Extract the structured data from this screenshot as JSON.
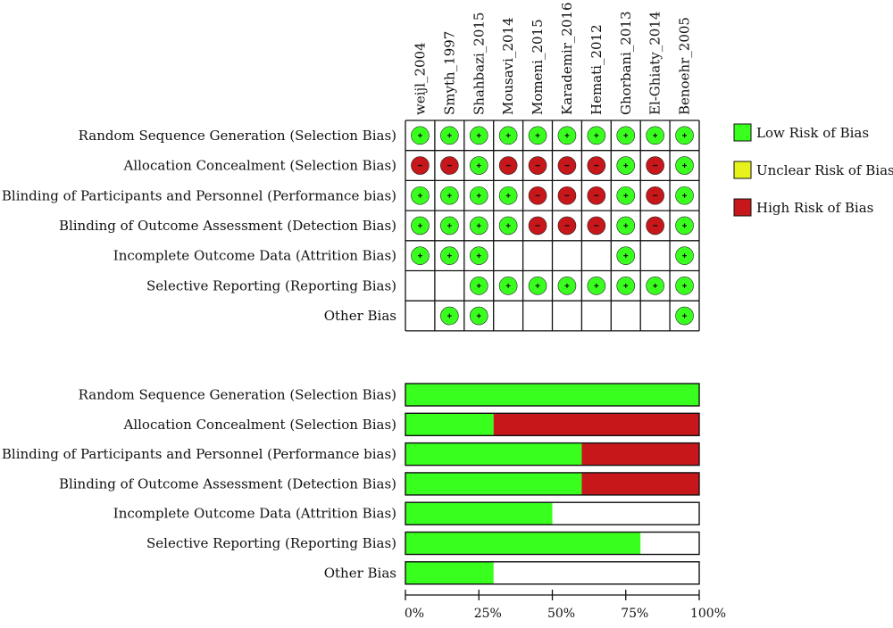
{
  "colors": {
    "low": "#39ff1f",
    "unclear": "#e7f21d",
    "high": "#c8171a",
    "none": "#ffffff",
    "border": "#111111"
  },
  "legend": {
    "items": [
      {
        "label": "Low Risk of Bias",
        "color": "#39ff1f"
      },
      {
        "label": "Unclear Risk of Bias",
        "color": "#e7f21d"
      },
      {
        "label": "High Risk of Bias",
        "color": "#c8171a"
      }
    ]
  },
  "chart_data": [
    {
      "type": "table",
      "studies": [
        "weijl_2004",
        "Smyth_1997",
        "Shahbazi_2015",
        "Mousavi_2014",
        "Momeni_2015",
        "Karademir_2016",
        "Hemati_2012",
        "Ghorbani_2013",
        "El-Ghiaty_2014",
        "Benoehr_2005"
      ],
      "domains": [
        "Random Sequence Generation (Selection Bias)",
        "Allocation Concealment (Selection Bias)",
        "Blinding of Participants and Personnel (Performance bias)",
        "Blinding of Outcome Assessment (Detection Bias)",
        "Incomplete Outcome Data (Attrition Bias)",
        "Selective Reporting (Reporting Bias)",
        "Other Bias"
      ],
      "judgements": [
        [
          "low",
          "low",
          "low",
          "low",
          "low",
          "low",
          "low",
          "low",
          "low",
          "low"
        ],
        [
          "high",
          "high",
          "low",
          "high",
          "high",
          "high",
          "high",
          "low",
          "high",
          "low"
        ],
        [
          "low",
          "low",
          "low",
          "low",
          "high",
          "high",
          "high",
          "low",
          "high",
          "low"
        ],
        [
          "low",
          "low",
          "low",
          "low",
          "high",
          "high",
          "high",
          "low",
          "high",
          "low"
        ],
        [
          "low",
          "low",
          "low",
          "",
          "",
          "",
          "",
          "low",
          "",
          "low"
        ],
        [
          "",
          "",
          "low",
          "low",
          "low",
          "low",
          "low",
          "low",
          "low",
          "low"
        ],
        [
          "",
          "low",
          "low",
          "",
          "",
          "",
          "",
          "",
          "",
          "low"
        ]
      ]
    },
    {
      "type": "bar",
      "categories": [
        "Random Sequence Generation (Selection Bias)",
        "Allocation Concealment (Selection Bias)",
        "Blinding of Participants and Personnel (Performance bias)",
        "Blinding of Outcome Assessment (Detection Bias)",
        "Incomplete Outcome Data (Attrition Bias)",
        "Selective Reporting (Reporting Bias)",
        "Other Bias"
      ],
      "series": [
        {
          "name": "Low Risk of Bias",
          "color": "#39ff1f",
          "values": [
            100,
            30,
            60,
            60,
            50,
            80,
            30
          ]
        },
        {
          "name": "High Risk of Bias",
          "color": "#c8171a",
          "values": [
            0,
            70,
            40,
            40,
            0,
            0,
            0
          ]
        }
      ],
      "xticks": [
        "0%",
        "25%",
        "50%",
        "75%",
        "100%"
      ],
      "xlim": [
        0,
        100
      ],
      "legend": "right"
    }
  ]
}
